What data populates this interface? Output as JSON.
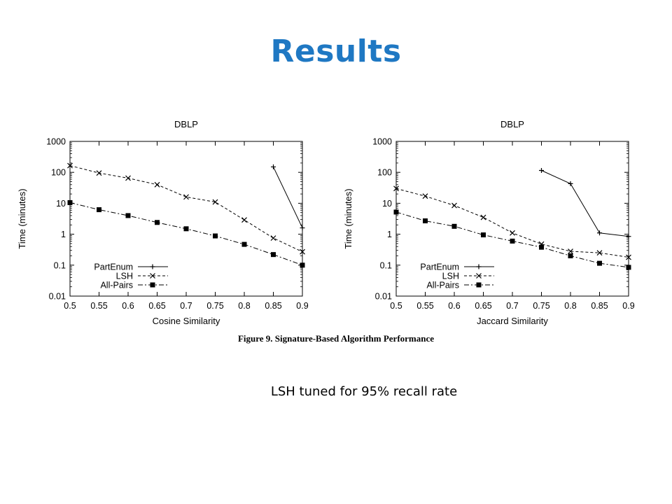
{
  "slide": {
    "title": "Results",
    "caption": "Figure 9.  Signature-Based Algorithm Performance",
    "note": "LSH tuned for 95% recall rate"
  },
  "chart_data": [
    {
      "type": "line",
      "title": "DBLP",
      "xlabel": "Cosine Similarity",
      "ylabel": "Time (minutes)",
      "yscale": "log",
      "xlim": [
        0.5,
        0.9
      ],
      "ylim": [
        0.01,
        1000
      ],
      "x_ticks": [
        "0.5",
        "0.55",
        "0.6",
        "0.65",
        "0.7",
        "0.75",
        "0.8",
        "0.85",
        "0.9"
      ],
      "y_ticks": [
        "0.01",
        "0.1",
        "1",
        "10",
        "100",
        "1000"
      ],
      "legend_position": "bottom-left",
      "series": [
        {
          "name": "PartEnum",
          "marker": "plus",
          "dash": "",
          "points": [
            [
              0.85,
              150
            ],
            [
              0.9,
              1.6
            ]
          ]
        },
        {
          "name": "LSH",
          "marker": "cross",
          "dash": "4,3",
          "points": [
            [
              0.5,
              165
            ],
            [
              0.55,
              95
            ],
            [
              0.6,
              65
            ],
            [
              0.65,
              40
            ],
            [
              0.7,
              16
            ],
            [
              0.75,
              11
            ],
            [
              0.8,
              2.9
            ],
            [
              0.85,
              0.75
            ],
            [
              0.9,
              0.27
            ]
          ]
        },
        {
          "name": "All-Pairs",
          "marker": "square",
          "dash": "7,3,2,3",
          "points": [
            [
              0.5,
              10.5
            ],
            [
              0.55,
              6.2
            ],
            [
              0.6,
              4.0
            ],
            [
              0.65,
              2.4
            ],
            [
              0.7,
              1.5
            ],
            [
              0.75,
              0.88
            ],
            [
              0.8,
              0.47
            ],
            [
              0.85,
              0.22
            ],
            [
              0.9,
              0.1
            ]
          ]
        }
      ]
    },
    {
      "type": "line",
      "title": "DBLP",
      "xlabel": "Jaccard Similarity",
      "ylabel": "Time (minutes)",
      "yscale": "log",
      "xlim": [
        0.5,
        0.9
      ],
      "ylim": [
        0.01,
        1000
      ],
      "x_ticks": [
        "0.5",
        "0.55",
        "0.6",
        "0.65",
        "0.7",
        "0.75",
        "0.8",
        "0.85",
        "0.9"
      ],
      "y_ticks": [
        "0.01",
        "0.1",
        "1",
        "10",
        "100",
        "1000"
      ],
      "legend_position": "bottom-left",
      "series": [
        {
          "name": "PartEnum",
          "marker": "plus",
          "dash": "",
          "points": [
            [
              0.75,
              115
            ],
            [
              0.8,
              43
            ],
            [
              0.85,
              1.1
            ],
            [
              0.9,
              0.85
            ]
          ]
        },
        {
          "name": "LSH",
          "marker": "cross",
          "dash": "4,3",
          "points": [
            [
              0.5,
              30
            ],
            [
              0.55,
              17
            ],
            [
              0.6,
              8.5
            ],
            [
              0.65,
              3.5
            ],
            [
              0.7,
              1.1
            ],
            [
              0.75,
              0.48
            ],
            [
              0.8,
              0.28
            ],
            [
              0.85,
              0.25
            ],
            [
              0.9,
              0.18
            ]
          ]
        },
        {
          "name": "All-Pairs",
          "marker": "square",
          "dash": "7,3,2,3",
          "points": [
            [
              0.5,
              5.2
            ],
            [
              0.55,
              2.7
            ],
            [
              0.6,
              1.8
            ],
            [
              0.65,
              0.95
            ],
            [
              0.7,
              0.6
            ],
            [
              0.75,
              0.38
            ],
            [
              0.8,
              0.2
            ],
            [
              0.85,
              0.115
            ],
            [
              0.9,
              0.085
            ]
          ]
        }
      ]
    }
  ]
}
